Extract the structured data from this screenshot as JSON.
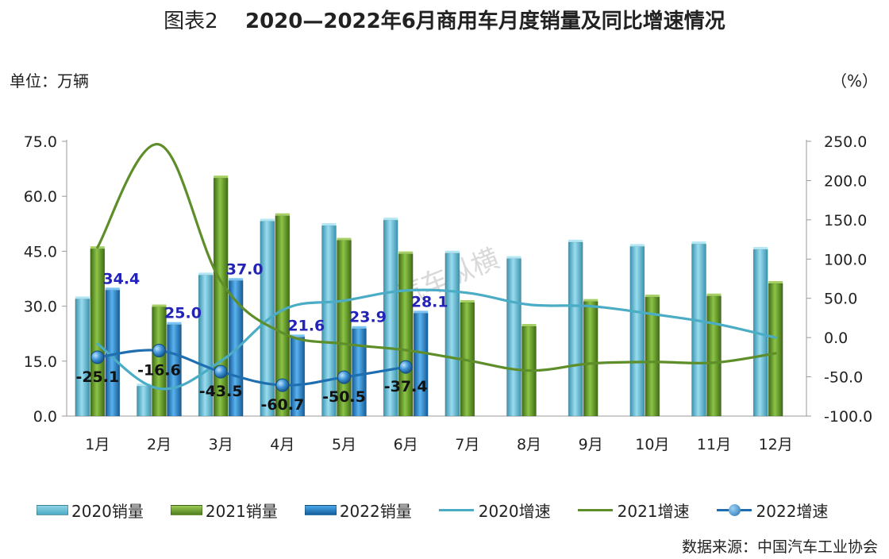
{
  "figure": {
    "title_prefix": "图表2",
    "title_main": "2020—2022年6月商用车月度销量及同比增速情况",
    "unit_left": "单位：万辆",
    "unit_right": "（%）",
    "source": "数据来源：中国汽车工业协会",
    "watermark": "汽车纵横"
  },
  "chart_data": {
    "type": "bar",
    "categories": [
      "1月",
      "2月",
      "3月",
      "4月",
      "5月",
      "6月",
      "7月",
      "8月",
      "9月",
      "10月",
      "11月",
      "12月"
    ],
    "series": [
      {
        "name": "2020销量",
        "kind": "bar",
        "axis": "left",
        "color": "#4bacc6",
        "values": [
          32.0,
          8.2,
          38.5,
          53.2,
          52.0,
          53.5,
          44.5,
          43.0,
          47.5,
          46.3,
          47.0,
          45.5
        ]
      },
      {
        "name": "2021销量",
        "kind": "bar",
        "axis": "left",
        "color": "#6a9a2c",
        "values": [
          45.7,
          29.8,
          65.0,
          54.7,
          48.0,
          44.3,
          31.0,
          24.5,
          31.3,
          32.5,
          32.8,
          36.2
        ]
      },
      {
        "name": "2022销量",
        "kind": "bar",
        "axis": "left",
        "color": "#1f7fc4",
        "values": [
          34.4,
          25.0,
          37.0,
          21.6,
          23.9,
          28.1,
          null,
          null,
          null,
          null,
          null,
          null
        ],
        "labels": [
          "34.4",
          "25.0",
          "37.0",
          "21.6",
          "23.9",
          "28.1"
        ]
      },
      {
        "name": "2020增速",
        "kind": "line",
        "axis": "right",
        "color": "#4bacc6",
        "values": [
          -8,
          -65,
          -30,
          35,
          47,
          60,
          57,
          42,
          40,
          30,
          18,
          0
        ]
      },
      {
        "name": "2021增速",
        "kind": "line",
        "axis": "right",
        "color": "#5e8e29",
        "values": [
          115,
          246,
          72,
          6,
          -8,
          -16,
          -29,
          -42,
          -33,
          -31,
          -32,
          -20
        ]
      },
      {
        "name": "2022增速",
        "kind": "line",
        "axis": "right",
        "color": "#1f6fb0",
        "markers": true,
        "values": [
          -25.1,
          -16.6,
          -43.5,
          -60.7,
          -50.5,
          -37.4,
          null,
          null,
          null,
          null,
          null,
          null
        ],
        "labels": [
          "-25.1",
          "-16.6",
          "-43.5",
          "-60.7",
          "-50.5",
          "-37.4"
        ]
      }
    ],
    "y_left": {
      "min": 0,
      "max": 75,
      "ticks": [
        "0.0",
        "15.0",
        "30.0",
        "45.0",
        "60.0",
        "75.0"
      ]
    },
    "y_right": {
      "min": -100,
      "max": 250,
      "ticks": [
        "-100.0",
        "-50.0",
        "0.0",
        "50.0",
        "100.0",
        "150.0",
        "200.0",
        "250.0"
      ]
    },
    "grid": false,
    "legend_position": "bottom"
  }
}
